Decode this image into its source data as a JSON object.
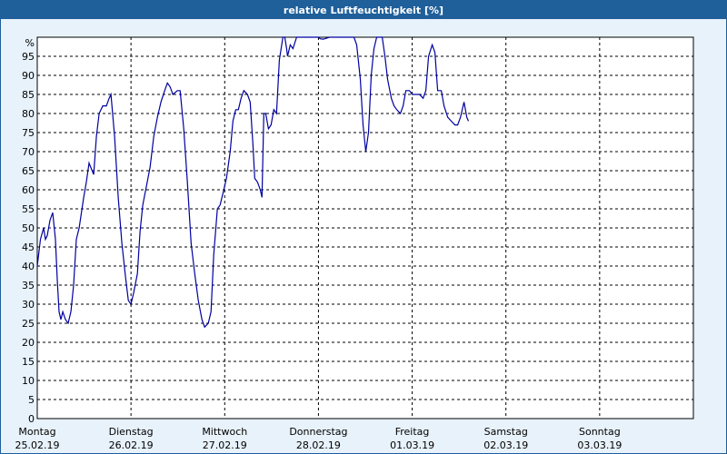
{
  "chart_data": {
    "type": "line",
    "title": "relative Luftfeuchtigkeit [%]",
    "y_unit_label": "%",
    "ylim": [
      0,
      100
    ],
    "y_ticks": [
      0,
      5,
      10,
      15,
      20,
      25,
      30,
      35,
      40,
      45,
      50,
      55,
      60,
      65,
      70,
      75,
      80,
      85,
      90,
      95
    ],
    "grid": true,
    "x_days": [
      {
        "day": "Montag",
        "date": "25.02.19"
      },
      {
        "day": "Dienstag",
        "date": "26.02.19"
      },
      {
        "day": "Mittwoch",
        "date": "27.02.19"
      },
      {
        "day": "Donnerstag",
        "date": "28.02.19"
      },
      {
        "day": "Freitag",
        "date": "01.03.19"
      },
      {
        "day": "Samstag",
        "date": "02.03.19"
      },
      {
        "day": "Sonntag",
        "date": "03.03.19"
      }
    ],
    "series": [
      {
        "color": "#0000a0",
        "points": [
          [
            0.0,
            40
          ],
          [
            0.034,
            47
          ],
          [
            0.068,
            50
          ],
          [
            0.087,
            47
          ],
          [
            0.107,
            48
          ],
          [
            0.136,
            52
          ],
          [
            0.165,
            54
          ],
          [
            0.194,
            47
          ],
          [
            0.214,
            36
          ],
          [
            0.233,
            28
          ],
          [
            0.252,
            26
          ],
          [
            0.272,
            28
          ],
          [
            0.301,
            26
          ],
          [
            0.33,
            25
          ],
          [
            0.359,
            28
          ],
          [
            0.388,
            35
          ],
          [
            0.417,
            47
          ],
          [
            0.447,
            50
          ],
          [
            0.495,
            58
          ],
          [
            0.524,
            62
          ],
          [
            0.553,
            67
          ],
          [
            0.602,
            64
          ],
          [
            0.631,
            74
          ],
          [
            0.66,
            80
          ],
          [
            0.699,
            82
          ],
          [
            0.738,
            82
          ],
          [
            0.767,
            84
          ],
          [
            0.786,
            85
          ],
          [
            0.825,
            74
          ],
          [
            0.864,
            58
          ],
          [
            0.903,
            46
          ],
          [
            0.942,
            37
          ],
          [
            0.971,
            31
          ],
          [
            1.0,
            30
          ],
          [
            1.029,
            33
          ],
          [
            1.068,
            38
          ],
          [
            1.097,
            49
          ],
          [
            1.126,
            56
          ],
          [
            1.165,
            61
          ],
          [
            1.204,
            66
          ],
          [
            1.243,
            74
          ],
          [
            1.282,
            79
          ],
          [
            1.32,
            83
          ],
          [
            1.359,
            86
          ],
          [
            1.388,
            88
          ],
          [
            1.417,
            87
          ],
          [
            1.447,
            85
          ],
          [
            1.495,
            86
          ],
          [
            1.524,
            86
          ],
          [
            1.563,
            76
          ],
          [
            1.602,
            62
          ],
          [
            1.641,
            46
          ],
          [
            1.68,
            38
          ],
          [
            1.718,
            31
          ],
          [
            1.757,
            26
          ],
          [
            1.786,
            24
          ],
          [
            1.825,
            25
          ],
          [
            1.854,
            28
          ],
          [
            1.883,
            43
          ],
          [
            1.922,
            55
          ],
          [
            1.951,
            56
          ],
          [
            1.99,
            60
          ],
          [
            2.019,
            63
          ],
          [
            2.058,
            70
          ],
          [
            2.087,
            78
          ],
          [
            2.117,
            81
          ],
          [
            2.146,
            81
          ],
          [
            2.175,
            84
          ],
          [
            2.204,
            86
          ],
          [
            2.243,
            85
          ],
          [
            2.272,
            83
          ],
          [
            2.301,
            72
          ],
          [
            2.32,
            63
          ],
          [
            2.35,
            62
          ],
          [
            2.379,
            60
          ],
          [
            2.398,
            58
          ],
          [
            2.417,
            80
          ],
          [
            2.437,
            80
          ],
          [
            2.466,
            76
          ],
          [
            2.495,
            77
          ],
          [
            2.524,
            81
          ],
          [
            2.553,
            80
          ],
          [
            2.583,
            94
          ],
          [
            2.621,
            100
          ],
          [
            2.641,
            100
          ],
          [
            2.66,
            97
          ],
          [
            2.67,
            95
          ],
          [
            2.699,
            98
          ],
          [
            2.728,
            97
          ],
          [
            2.767,
            100
          ],
          [
            3.0,
            100
          ],
          [
            3.019,
            99.6
          ],
          [
            3.049,
            99.5
          ],
          [
            3.068,
            99.6
          ],
          [
            3.117,
            100
          ],
          [
            3.379,
            100
          ],
          [
            3.408,
            98
          ],
          [
            3.447,
            89
          ],
          [
            3.476,
            77
          ],
          [
            3.505,
            70
          ],
          [
            3.534,
            75
          ],
          [
            3.563,
            90
          ],
          [
            3.592,
            97
          ],
          [
            3.621,
            100
          ],
          [
            3.68,
            100
          ],
          [
            3.709,
            95
          ],
          [
            3.738,
            89
          ],
          [
            3.777,
            84
          ],
          [
            3.806,
            82
          ],
          [
            3.835,
            81
          ],
          [
            3.874,
            80
          ],
          [
            3.903,
            82
          ],
          [
            3.932,
            86
          ],
          [
            3.971,
            86
          ],
          [
            4.0,
            85
          ],
          [
            4.039,
            85
          ],
          [
            4.078,
            85
          ],
          [
            4.117,
            84
          ],
          [
            4.146,
            86
          ],
          [
            4.175,
            95
          ],
          [
            4.214,
            98
          ],
          [
            4.243,
            96
          ],
          [
            4.272,
            86
          ],
          [
            4.311,
            86
          ],
          [
            4.34,
            82
          ],
          [
            4.379,
            79
          ],
          [
            4.417,
            78
          ],
          [
            4.456,
            77
          ],
          [
            4.485,
            77
          ],
          [
            4.515,
            79
          ],
          [
            4.553,
            83
          ],
          [
            4.583,
            79
          ],
          [
            4.6,
            78
          ]
        ]
      }
    ]
  }
}
